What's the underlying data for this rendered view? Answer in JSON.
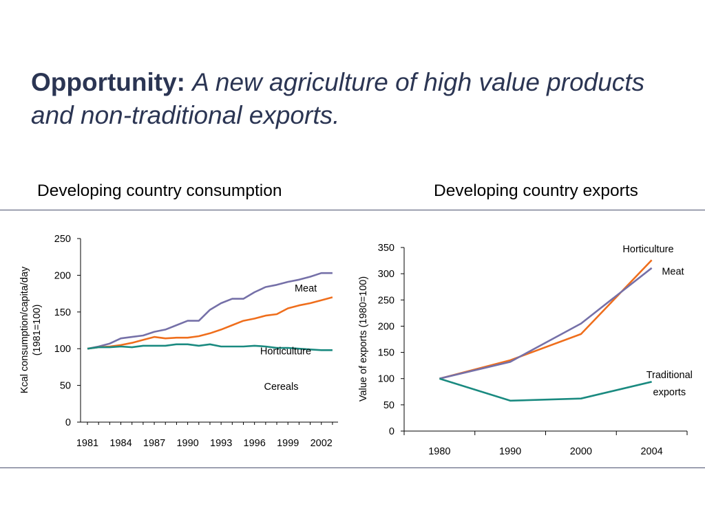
{
  "title": {
    "lead": "Opportunity:",
    "rest": "A new agriculture of high value products and non-traditional exports."
  },
  "panels": {
    "left_heading": "Developing country consumption",
    "right_heading": "Developing country exports"
  },
  "colors": {
    "purple": "#7570a8",
    "orange": "#ef6e1c",
    "teal": "#1a8a80",
    "title": "#2b3553",
    "rule": "#4a4f6e"
  },
  "chart_data": [
    {
      "type": "line",
      "title": "",
      "ylabel": "Kcal consumption/capita/day (1981=100)",
      "xlabel": "",
      "x": [
        1981,
        1982,
        1983,
        1984,
        1985,
        1986,
        1987,
        1988,
        1989,
        1990,
        1991,
        1992,
        1993,
        1994,
        1995,
        1996,
        1997,
        1998,
        1999,
        2000,
        2001,
        2002,
        2003
      ],
      "xticks": [
        1981,
        1984,
        1987,
        1990,
        1993,
        1996,
        1999,
        2002
      ],
      "xlim": [
        1981,
        2003.5
      ],
      "ylim": [
        0,
        250
      ],
      "yticks": [
        0,
        50,
        100,
        150,
        200,
        250
      ],
      "series": [
        {
          "name": "Meat",
          "color": "#7570a8",
          "values": [
            100,
            103,
            107,
            114,
            116,
            118,
            123,
            126,
            132,
            138,
            138,
            153,
            162,
            168,
            168,
            177,
            184,
            187,
            191,
            194,
            198,
            203,
            203
          ]
        },
        {
          "name": "Horticulture",
          "color": "#ef6e1c",
          "values": [
            100,
            102,
            103,
            105,
            108,
            112,
            116,
            114,
            115,
            115,
            117,
            121,
            126,
            132,
            138,
            141,
            145,
            147,
            155,
            159,
            162,
            166,
            170
          ]
        },
        {
          "name": "Cereals",
          "color": "#1a8a80",
          "values": [
            100,
            102,
            102,
            103,
            102,
            104,
            104,
            104,
            106,
            106,
            104,
            106,
            103,
            103,
            103,
            104,
            103,
            101,
            101,
            100,
            99,
            98,
            98
          ]
        }
      ],
      "labels": [
        {
          "text": "Meat",
          "x": 2000.6,
          "y": 178
        },
        {
          "text": "Horticulture",
          "x": 1998.8,
          "y": 92
        },
        {
          "text": "Cereals",
          "x": 1998.4,
          "y": 44
        }
      ]
    },
    {
      "type": "line",
      "title": "",
      "ylabel": "Value of exports (1980=100)",
      "xlabel": "",
      "categories": [
        "1980",
        "1990",
        "2000",
        "2004"
      ],
      "ylim": [
        0,
        350
      ],
      "yticks": [
        0,
        50,
        100,
        150,
        200,
        250,
        300,
        350
      ],
      "series": [
        {
          "name": "Horticulture",
          "color": "#ef6e1c",
          "values": [
            100,
            135,
            185,
            326
          ]
        },
        {
          "name": "Meat",
          "color": "#7570a8",
          "values": [
            100,
            132,
            205,
            311
          ]
        },
        {
          "name": "Traditional exports",
          "color": "#1a8a80",
          "values": [
            100,
            58,
            62,
            94
          ]
        }
      ],
      "labels": [
        {
          "lines": [
            "Horticulture"
          ],
          "cat": 2.95,
          "y": 341
        },
        {
          "lines": [
            "Meat"
          ],
          "cat": 3.3,
          "y": 298
        },
        {
          "lines": [
            "Traditional",
            "exports"
          ],
          "cat": 3.25,
          "y": 101
        }
      ]
    }
  ]
}
